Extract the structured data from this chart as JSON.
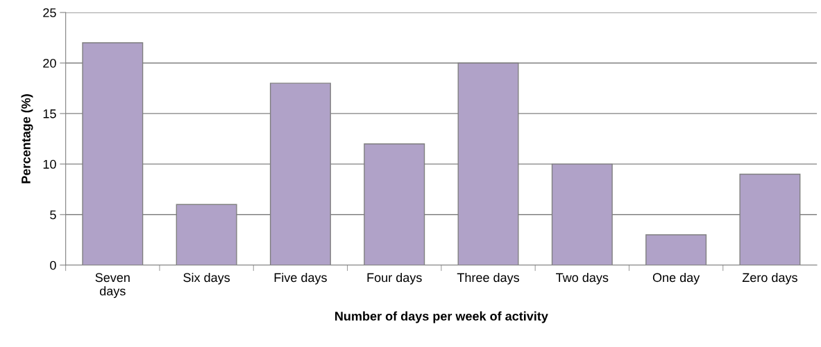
{
  "chart_data": {
    "type": "bar",
    "xlabel": "Number of days per week of activity",
    "ylabel": "Percentage (%)",
    "categories": [
      "Seven\ndays",
      "Six days",
      "Five days",
      "Four days",
      "Three days",
      "Two days",
      "One day",
      "Zero days"
    ],
    "values": [
      22,
      6,
      18,
      12,
      20,
      10,
      3,
      9
    ],
    "color": "#b0a2c8",
    "ylim": [
      0,
      25
    ],
    "yticks": [
      0,
      5,
      10,
      15,
      20,
      25
    ],
    "grid": "y",
    "legend": false
  }
}
